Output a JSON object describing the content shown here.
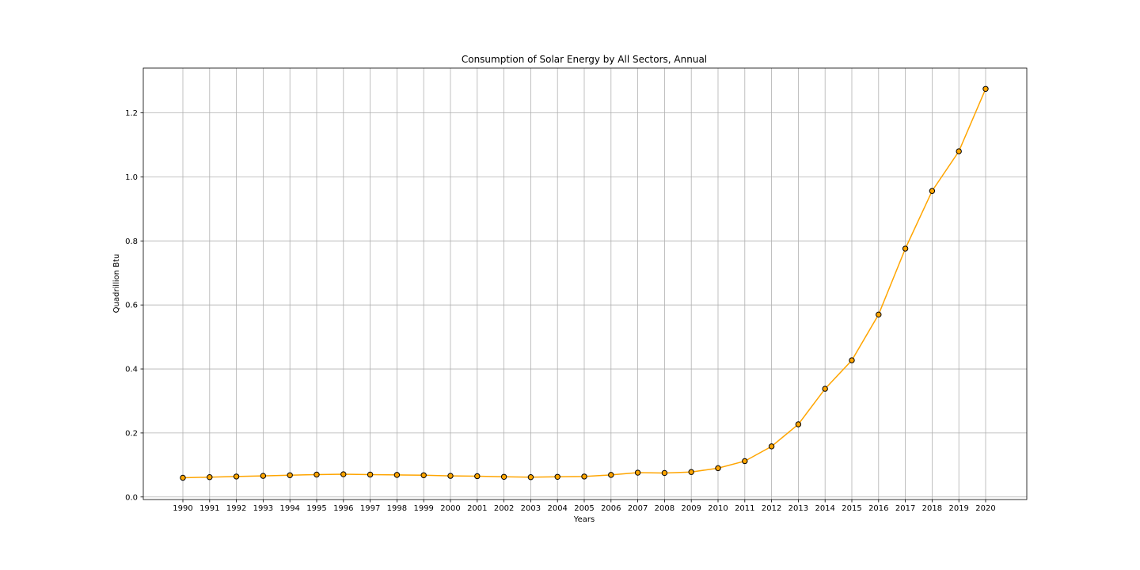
{
  "chart_data": {
    "type": "line",
    "title": "Consumption of Solar Energy by All Sectors, Annual",
    "xlabel": "Years",
    "ylabel": "Quadrillion Btu",
    "grid": true,
    "categories": [
      "1990",
      "1991",
      "1992",
      "1993",
      "1994",
      "1995",
      "1996",
      "1997",
      "1998",
      "1999",
      "2000",
      "2001",
      "2002",
      "2003",
      "2004",
      "2005",
      "2006",
      "2007",
      "2008",
      "2009",
      "2010",
      "2011",
      "2012",
      "2013",
      "2014",
      "2015",
      "2016",
      "2017",
      "2018",
      "2019",
      "2020"
    ],
    "series": [
      {
        "values": [
          0.06,
          0.062,
          0.064,
          0.066,
          0.068,
          0.07,
          0.071,
          0.07,
          0.069,
          0.068,
          0.066,
          0.065,
          0.063,
          0.062,
          0.063,
          0.064,
          0.069,
          0.076,
          0.075,
          0.078,
          0.09,
          0.112,
          0.158,
          0.227,
          0.338,
          0.427,
          0.57,
          0.776,
          0.956,
          1.08,
          1.275
        ],
        "color": "#ffa500",
        "marker_edge": "#000000"
      }
    ],
    "yticks": [
      "0.0",
      "0.2",
      "0.4",
      "0.6",
      "0.8",
      "1.0",
      "1.2"
    ],
    "ytick_values": [
      0.0,
      0.2,
      0.4,
      0.6,
      0.8,
      1.0,
      1.2
    ],
    "ylim": [
      -0.008,
      1.34
    ]
  }
}
